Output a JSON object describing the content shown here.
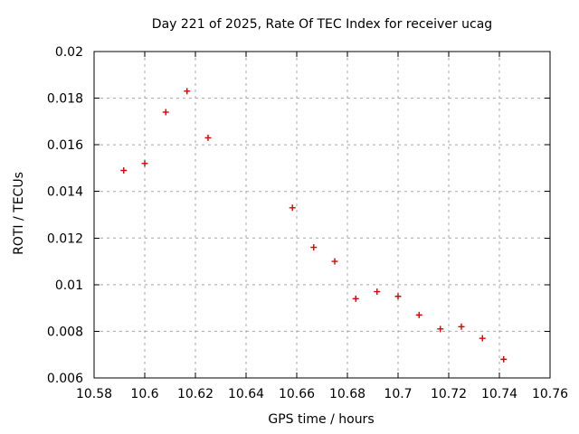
{
  "chart_data": {
    "type": "scatter",
    "title": "Day 221 of 2025, Rate Of TEC Index for receiver ucag",
    "xlabel": "GPS time / hours",
    "ylabel": "ROTI / TECUs",
    "xlim": [
      10.58,
      10.76
    ],
    "ylim": [
      0.006,
      0.02
    ],
    "x_tick_values": [
      10.58,
      10.6,
      10.62,
      10.64,
      10.66,
      10.68,
      10.7,
      10.72,
      10.74,
      10.76
    ],
    "x_tick_labels": [
      "10.58",
      "10.6",
      "10.62",
      "10.64",
      "10.66",
      "10.68",
      "10.7",
      "10.72",
      "10.74",
      "10.76"
    ],
    "y_tick_values": [
      0.006,
      0.008,
      0.01,
      0.012,
      0.014,
      0.016,
      0.018,
      0.02
    ],
    "y_tick_labels": [
      "0.006",
      "0.008",
      "0.01",
      "0.012",
      "0.014",
      "0.016",
      "0.018",
      "0.02"
    ],
    "grid": true,
    "legend": "none",
    "marker": "plus",
    "series": [
      {
        "name": "ROTI",
        "x": [
          10.5917,
          10.6,
          10.6083,
          10.6167,
          10.625,
          10.6583,
          10.6667,
          10.675,
          10.6833,
          10.6917,
          10.7,
          10.7083,
          10.7167,
          10.725,
          10.7333,
          10.7417
        ],
        "y": [
          0.0149,
          0.0152,
          0.0174,
          0.0183,
          0.0163,
          0.0133,
          0.0116,
          0.011,
          0.0094,
          0.0097,
          0.0095,
          0.0087,
          0.0081,
          0.0082,
          0.0077,
          0.0068
        ]
      }
    ],
    "colors": {
      "marker": "#dd0000",
      "grid": "#a8a8a8",
      "axis": "#000000",
      "background": "#ffffff",
      "text": "#000000"
    }
  }
}
